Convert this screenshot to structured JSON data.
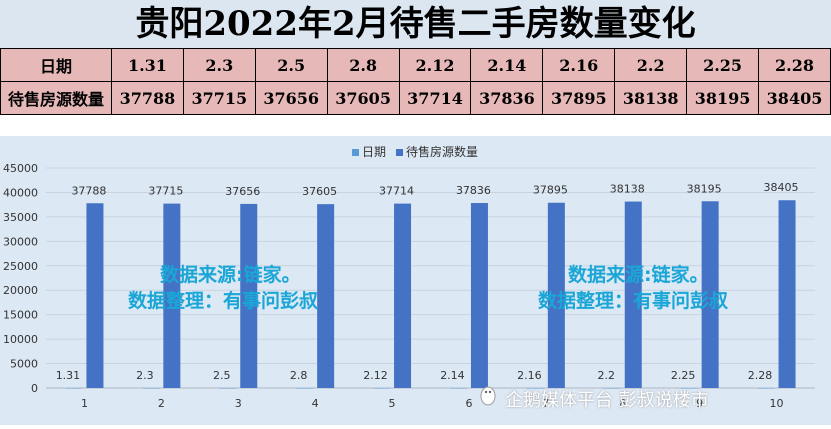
{
  "title": "贵阳2022年2月待售二手房数量变化",
  "table": {
    "row1_header": "日期",
    "row2_header": "待售房源数量",
    "dates": [
      "1.31",
      "2.3",
      "2.5",
      "2.8",
      "2.12",
      "2.14",
      "2.16",
      "2.2",
      "2.25",
      "2.28"
    ],
    "counts": [
      "37788",
      "37715",
      "37656",
      "37605",
      "37714",
      "37836",
      "37895",
      "38138",
      "38195",
      "38405"
    ]
  },
  "watermark": {
    "line1": "数据来源:链家。",
    "line2": "数据整理：有事问彭叔"
  },
  "footer_brand": "企鹅媒体平台 彭叔说楼市",
  "chart_data": {
    "type": "bar",
    "categories": [
      "1",
      "2",
      "3",
      "4",
      "5",
      "6",
      "7",
      "8",
      "9",
      "10"
    ],
    "series": [
      {
        "name": "日期",
        "values": [
          1.31,
          2.3,
          2.5,
          2.8,
          2.12,
          2.14,
          2.16,
          2.2,
          2.25,
          2.28
        ],
        "color": "#5b9bd5"
      },
      {
        "name": "待售房源数量",
        "values": [
          37788,
          37715,
          37656,
          37605,
          37714,
          37836,
          37895,
          38138,
          38195,
          38405
        ],
        "color": "#4472c4"
      }
    ],
    "data_labels_series1": [
      "1.31",
      "2.3",
      "2.5",
      "2.8",
      "2.12",
      "2.14",
      "2.16",
      "2.2",
      "2.25",
      "2.28"
    ],
    "data_labels_series2": [
      "37788",
      "37715",
      "37656",
      "37605",
      "37714",
      "37836",
      "37895",
      "38138",
      "38195",
      "38405"
    ],
    "y_ticks": [
      0,
      5000,
      10000,
      15000,
      20000,
      25000,
      30000,
      35000,
      40000,
      45000
    ],
    "ylim": [
      0,
      45000
    ],
    "legend_position": "top-center",
    "grid": true
  }
}
